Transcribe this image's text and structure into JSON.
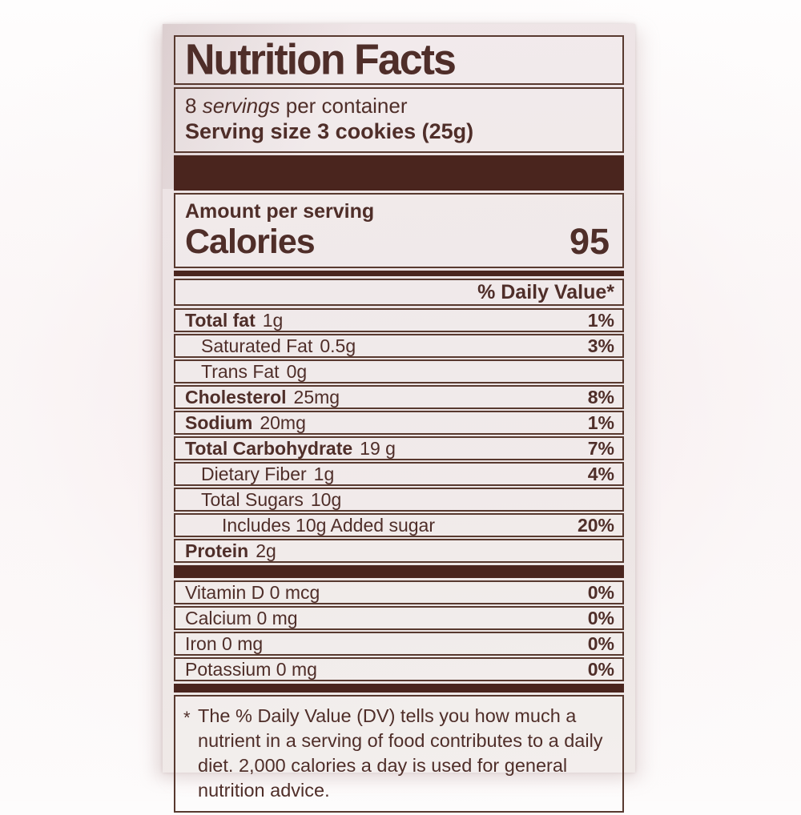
{
  "colors": {
    "ink": "#4f2e29",
    "divider_bar": "#4a251e",
    "border": "#58392f",
    "label_background": "#ece3e4",
    "page_background": "#fdfcfc"
  },
  "label": {
    "title": "Nutrition Facts",
    "servings_count": "8",
    "servings_word": "servings",
    "servings_suffix": " per container",
    "serving_size_line": "Serving size 3 cookies (25g)",
    "amount_per_serving": "Amount per serving",
    "calories_label": "Calories",
    "calories_value": "95",
    "daily_value_header": "% Daily Value*",
    "nutrients": [
      {
        "name": "Total fat",
        "amount": "1g",
        "dv": "1%",
        "bold": true,
        "indent": 0
      },
      {
        "name": "Saturated Fat",
        "amount": "0.5g",
        "dv": "3%",
        "bold": false,
        "indent": 1
      },
      {
        "name": "Trans Fat",
        "amount": "0g",
        "dv": "",
        "bold": false,
        "indent": 1
      },
      {
        "name": "Cholesterol",
        "amount": "25mg",
        "dv": "8%",
        "bold": true,
        "indent": 0
      },
      {
        "name": "Sodium",
        "amount": "20mg",
        "dv": "1%",
        "bold": true,
        "indent": 0
      },
      {
        "name": "Total Carbohydrate",
        "amount": "19 g",
        "dv": "7%",
        "bold": true,
        "indent": 0
      },
      {
        "name": "Dietary Fiber",
        "amount": "1g",
        "dv": "4%",
        "bold": false,
        "indent": 1
      },
      {
        "name": "Total Sugars",
        "amount": "10g",
        "dv": "",
        "bold": false,
        "indent": 1
      },
      {
        "name": "Includes 10g Added sugar",
        "amount": "",
        "dv": "20%",
        "bold": false,
        "indent": 2
      },
      {
        "name": "Protein",
        "amount": "2g",
        "dv": "",
        "bold": true,
        "indent": 0
      }
    ],
    "vitamins": [
      {
        "name": "Vitamin D 0 mcg",
        "dv": "0%"
      },
      {
        "name": "Calcium 0 mg",
        "dv": "0%"
      },
      {
        "name": "Iron 0 mg",
        "dv": "0%"
      },
      {
        "name": "Potassium 0 mg",
        "dv": "0%"
      }
    ],
    "footnote_marker": "*",
    "footnote_text": "The % Daily Value (DV) tells you how much a nutrient in a serving of food contributes to a daily diet. 2,000 calories a day is used for general nutrition advice."
  }
}
